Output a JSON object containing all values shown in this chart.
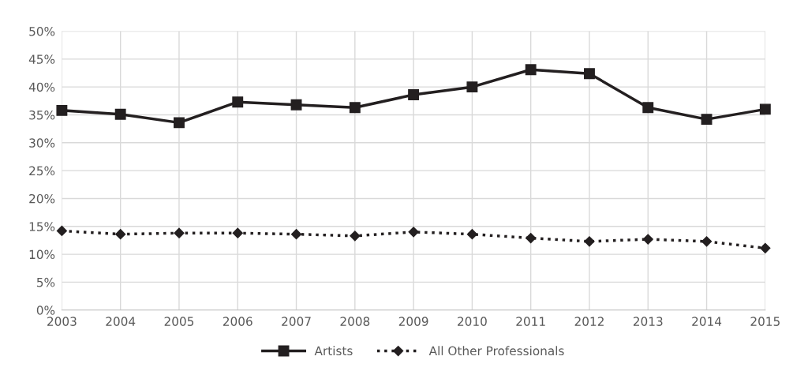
{
  "chart_data": {
    "type": "line",
    "x": [
      2003,
      2004,
      2005,
      2006,
      2007,
      2008,
      2009,
      2010,
      2011,
      2012,
      2013,
      2014,
      2015
    ],
    "xlim": [
      2003,
      2015
    ],
    "xticks": [
      2003,
      2004,
      2005,
      2006,
      2007,
      2008,
      2009,
      2010,
      2011,
      2012,
      2013,
      2014,
      2015
    ],
    "ylim": [
      0,
      50
    ],
    "yticks": [
      {
        "value": 0,
        "label": "0%"
      },
      {
        "value": 5,
        "label": "5%"
      },
      {
        "value": 10,
        "label": "10%"
      },
      {
        "value": 15,
        "label": "15%"
      },
      {
        "value": 20,
        "label": "20%"
      },
      {
        "value": 25,
        "label": "25%"
      },
      {
        "value": 30,
        "label": "30%"
      },
      {
        "value": 35,
        "label": "35%"
      },
      {
        "value": 40,
        "label": "40%"
      },
      {
        "value": 45,
        "label": "45%"
      },
      {
        "value": 50,
        "label": "50%"
      }
    ],
    "grid": true,
    "legend": "bottom",
    "series": [
      {
        "name": "Artists",
        "color": "#231f20",
        "marker": "square",
        "line_style": "solid",
        "values": [
          35.8,
          35.1,
          33.6,
          37.3,
          36.8,
          36.3,
          38.6,
          40.0,
          43.1,
          42.4,
          36.3,
          34.2,
          36.0
        ]
      },
      {
        "name": "All Other Professionals",
        "color": "#231f20",
        "marker": "diamond",
        "line_style": "dotted",
        "values": [
          14.2,
          13.6,
          13.8,
          13.8,
          13.6,
          13.3,
          14.0,
          13.6,
          12.9,
          12.3,
          12.7,
          12.3,
          11.1
        ]
      }
    ]
  }
}
